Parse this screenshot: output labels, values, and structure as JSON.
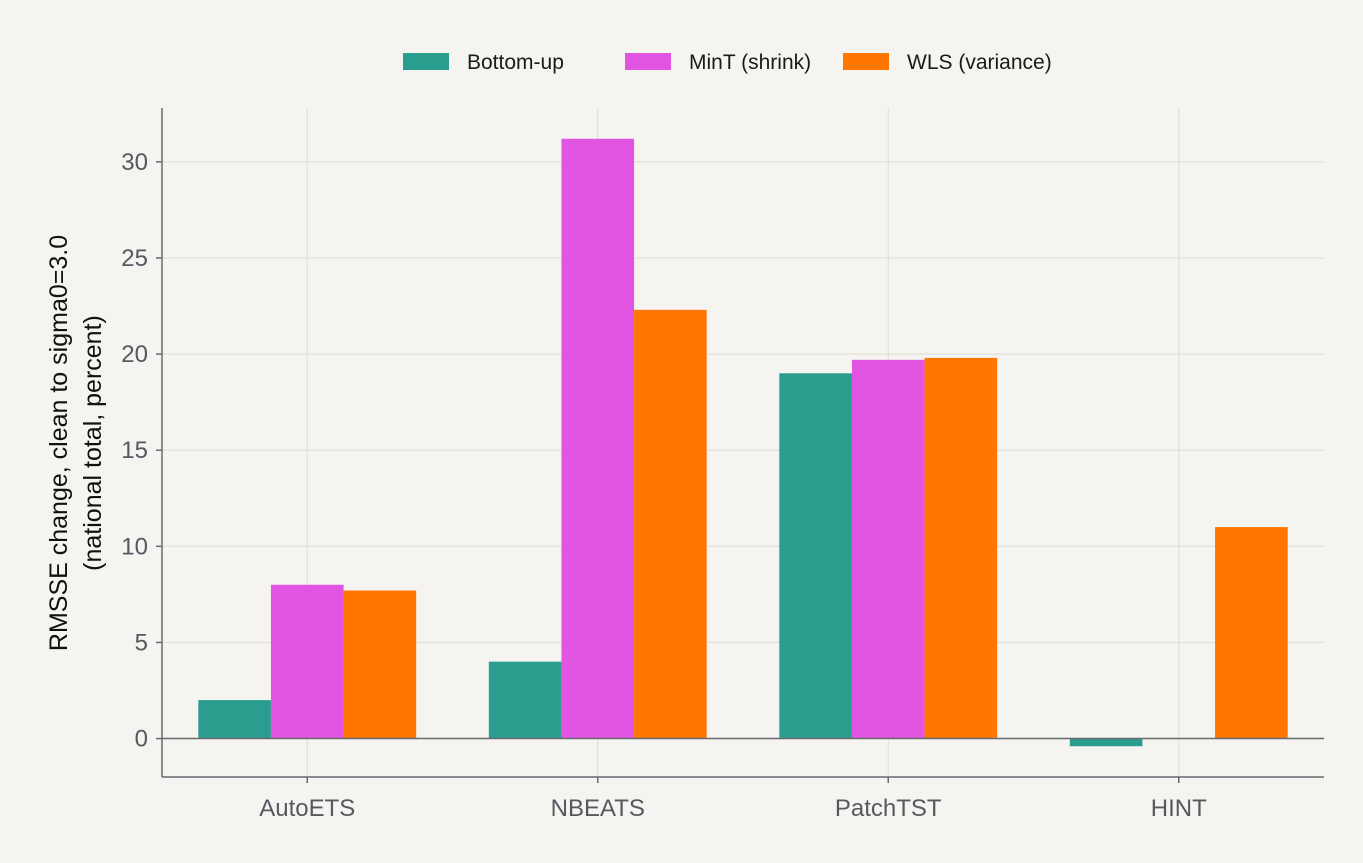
{
  "chart_data": {
    "type": "bar",
    "categories": [
      "AutoETS",
      "NBEATS",
      "PatchTST",
      "HINT"
    ],
    "series": [
      {
        "name": "Bottom-up",
        "color": "#2a9d8f",
        "values": [
          2.0,
          4.0,
          19.0,
          -0.4
        ]
      },
      {
        "name": "MinT (shrink)",
        "color": "#e255e2",
        "values": [
          8.0,
          31.2,
          19.7,
          0.0
        ]
      },
      {
        "name": "WLS (variance)",
        "color": "#ff7700",
        "values": [
          7.7,
          22.3,
          19.8,
          11.0
        ]
      }
    ],
    "title": "",
    "xlabel": "",
    "ylabel_lines": [
      "RMSSE change, clean to sigma0=3.0",
      "(national total, percent)"
    ],
    "yticks": [
      0,
      5,
      10,
      15,
      20,
      25,
      30
    ],
    "ylim": [
      -2,
      32.8
    ],
    "grid": true,
    "legend_position": "top-center"
  }
}
